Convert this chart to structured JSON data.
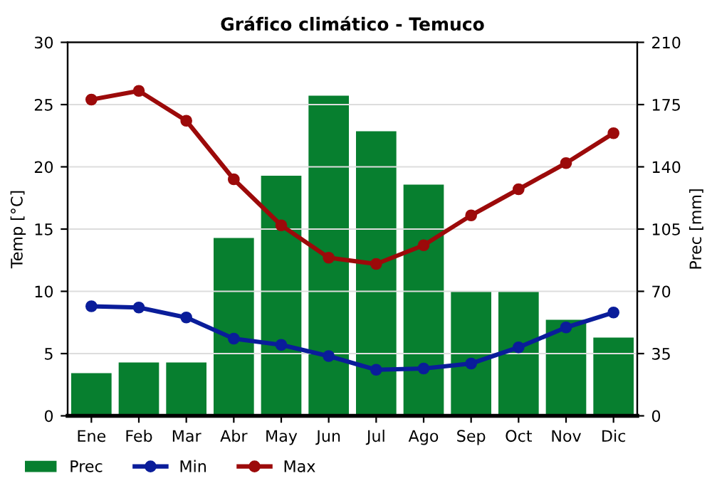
{
  "chart_data": {
    "type": "bar",
    "title": "Gráfico climático - Temuco",
    "ylabel": "Temp [°C]",
    "y2label": "Prec [mm]",
    "categories": [
      "Ene",
      "Feb",
      "Mar",
      "Abr",
      "May",
      "Jun",
      "Jul",
      "Ago",
      "Sep",
      "Oct",
      "Nov",
      "Dic"
    ],
    "series": [
      {
        "name": "Prec",
        "axis": "y2",
        "color": "#077f2f",
        "values": [
          24,
          30,
          30,
          100,
          135,
          180,
          160,
          130,
          70,
          70,
          54,
          44
        ]
      },
      {
        "name": "Min",
        "type": "line",
        "axis": "y",
        "color": "#0a1d9a",
        "values": [
          8.8,
          8.7,
          7.9,
          6.2,
          5.7,
          4.8,
          3.7,
          3.8,
          4.2,
          5.5,
          7.1,
          8.3
        ]
      },
      {
        "name": "Max",
        "type": "line",
        "axis": "y",
        "color": "#9c0a0a",
        "values": [
          25.4,
          26.1,
          23.7,
          19.0,
          15.3,
          12.7,
          12.2,
          13.7,
          16.1,
          18.2,
          20.3,
          22.7
        ]
      }
    ],
    "ylim": [
      0,
      30
    ],
    "yticks": [
      0,
      5,
      10,
      15,
      20,
      25,
      30
    ],
    "y2lim": [
      0,
      210
    ],
    "y2ticks": [
      0,
      35,
      70,
      105,
      140,
      175,
      210
    ],
    "grid": "y",
    "legend": "bottom left",
    "marker": "circle",
    "line_style": "solid"
  }
}
